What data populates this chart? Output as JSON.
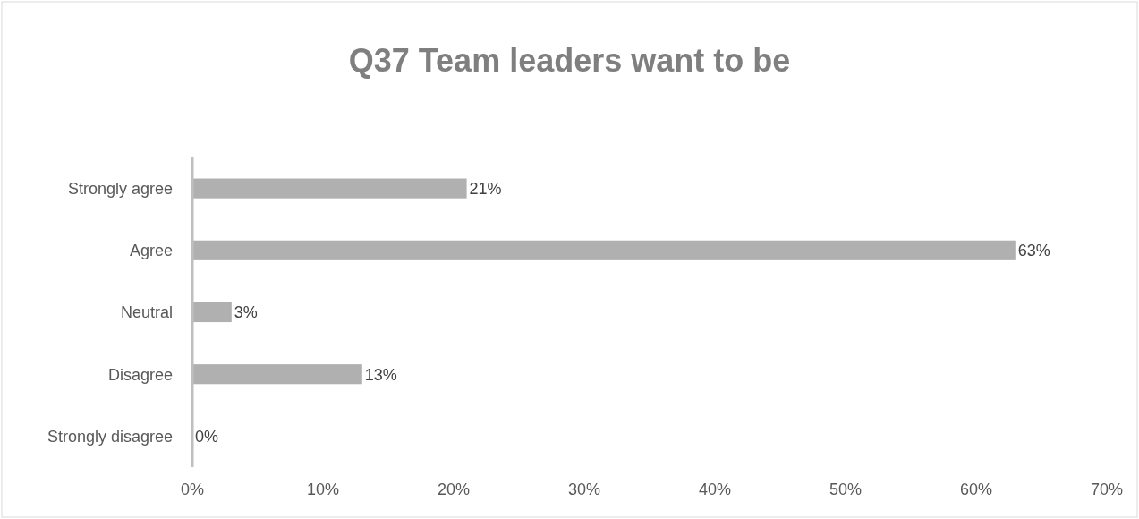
{
  "chart_data": {
    "type": "bar",
    "orientation": "horizontal",
    "title": "Q37 Team  leaders want to  be",
    "categories": [
      "Strongly agree",
      "Agree",
      "Neutral",
      "Disagree",
      "Strongly disagree"
    ],
    "values": [
      21,
      63,
      3,
      13,
      0
    ],
    "value_labels": [
      "21%",
      "63%",
      "3%",
      "13%",
      "0%"
    ],
    "color": "#b0b0b0",
    "xlim": [
      0,
      70
    ],
    "xticks": [
      {
        "value": 0,
        "label": "0%"
      },
      {
        "value": 10,
        "label": "10%"
      },
      {
        "value": 20,
        "label": "20%"
      },
      {
        "value": 30,
        "label": "30%"
      },
      {
        "value": 40,
        "label": "40%"
      },
      {
        "value": 50,
        "label": "50%"
      },
      {
        "value": 60,
        "label": "60%"
      },
      {
        "value": 70,
        "label": "70%"
      }
    ],
    "grid": false
  }
}
